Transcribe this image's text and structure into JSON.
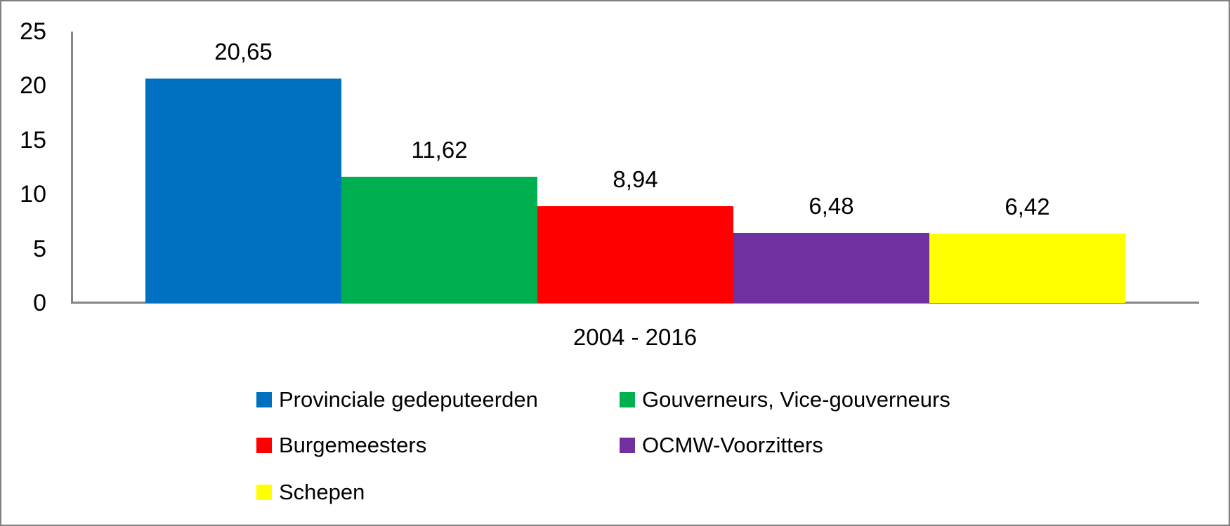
{
  "chart_data": {
    "type": "bar",
    "categories": [
      "2004 - 2016"
    ],
    "series": [
      {
        "name": "Provinciale gedeputeerden",
        "value": 20.65,
        "label": "20,65",
        "color": "#0070C0"
      },
      {
        "name": "Gouverneurs, Vice-gouverneurs",
        "value": 11.62,
        "label": "11,62",
        "color": "#00B050"
      },
      {
        "name": "Burgemeesters",
        "value": 8.94,
        "label": "8,94",
        "color": "#FF0000"
      },
      {
        "name": "OCMW-Voorzitters",
        "value": 6.48,
        "label": "6,48",
        "color": "#7030A0"
      },
      {
        "name": "Schepen",
        "value": 6.42,
        "label": "6,42",
        "color": "#FFFF00"
      }
    ],
    "xlabel": "2004 - 2016",
    "ylabel": "",
    "ylim": [
      0,
      25
    ],
    "yticks": [
      0,
      5,
      10,
      15,
      20,
      25
    ],
    "ytick_labels": [
      "0",
      "5",
      "10",
      "15",
      "20",
      "25"
    ],
    "grid": false,
    "data_labels": true,
    "legend_position": "bottom",
    "axis_color": "#868686",
    "text_color": "#000000"
  }
}
